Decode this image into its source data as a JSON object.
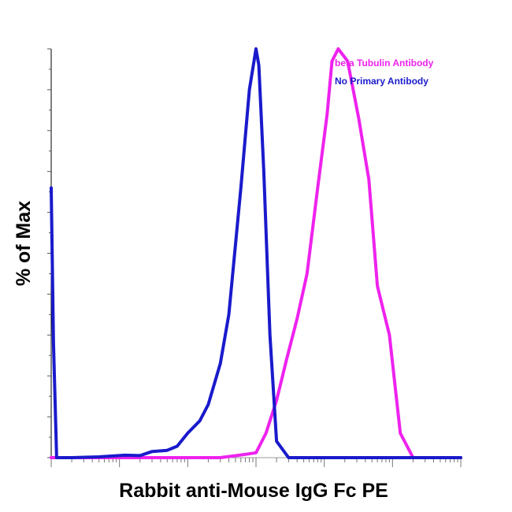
{
  "chart_data": {
    "type": "line",
    "title": "",
    "xlabel": "Rabbit anti-Mouse IgG Fc PE",
    "ylabel": "% of Max",
    "x_scale": "log",
    "xlim": [
      1,
      1000000
    ],
    "ylim": [
      0,
      100
    ],
    "grid": false,
    "legend_position": "top-right",
    "series": [
      {
        "name": "beta Tubulin  Antibody",
        "color": "#ee22ee",
        "x": [
          1,
          100,
          300,
          700,
          1000,
          1400,
          2000,
          2800,
          4000,
          5600,
          8000,
          11000,
          13000,
          16000,
          22000,
          32000,
          45000,
          60000,
          90000,
          130000,
          200000,
          1000000
        ],
        "y": [
          0,
          0,
          0,
          0.8,
          1.2,
          6,
          14,
          24,
          34,
          45,
          66,
          84,
          97,
          100,
          97,
          83,
          68,
          42,
          30,
          6,
          0,
          0
        ]
      },
      {
        "name": "No Primary Antibody",
        "color": "#1a1acc",
        "x": [
          1,
          1.08,
          1.2,
          2,
          5,
          8,
          12,
          20,
          30,
          50,
          70,
          100,
          150,
          200,
          300,
          400,
          600,
          800,
          1000,
          1100,
          1300,
          1600,
          2000,
          3000,
          5000,
          10000,
          1000000
        ],
        "y": [
          66,
          28,
          0,
          0,
          0.2,
          0.4,
          0.6,
          0.5,
          1.5,
          1.8,
          2.8,
          6,
          9,
          13,
          23,
          35,
          66,
          90,
          100,
          96,
          70,
          30,
          4,
          0,
          0,
          0,
          0
        ]
      }
    ]
  },
  "legend": {
    "items": [
      {
        "label": "beta Tubulin  Antibody",
        "color": "#ee22ee"
      },
      {
        "label": "No Primary Antibody",
        "color": "#1a1acc"
      }
    ]
  }
}
